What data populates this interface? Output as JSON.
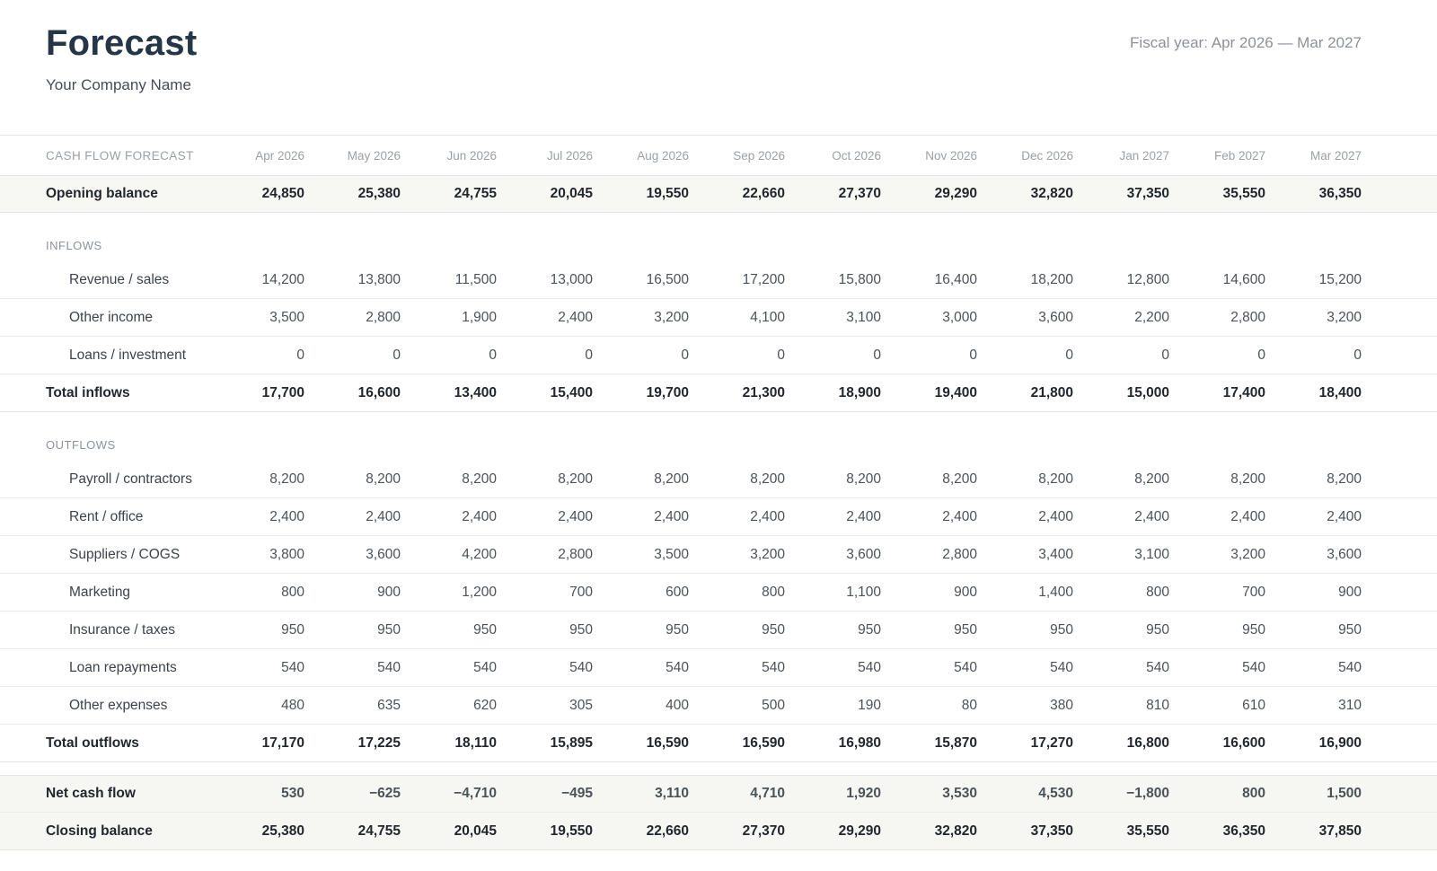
{
  "header": {
    "title": "Forecast",
    "company": "Your Company Name",
    "fiscal_year": "Fiscal year: Apr 2026 — Mar 2027"
  },
  "colors": {
    "positive": "#2d7d55",
    "negative": "#b33a2c",
    "title": "#253746",
    "row_highlight": "#f7f7f4"
  },
  "table": {
    "label_header": "CASH FLOW FORECAST",
    "months": [
      "Apr 2026",
      "May 2026",
      "Jun 2026",
      "Jul 2026",
      "Aug 2026",
      "Sep 2026",
      "Oct 2026",
      "Nov 2026",
      "Dec 2026",
      "Jan 2027",
      "Feb 2027",
      "Mar 2027"
    ],
    "rows": [
      {
        "type": "opening",
        "label": "Opening balance",
        "values": [
          "24,850",
          "25,380",
          "24,755",
          "20,045",
          "19,550",
          "22,660",
          "27,370",
          "29,290",
          "32,820",
          "37,350",
          "35,550",
          "36,350"
        ]
      },
      {
        "type": "section",
        "label": "INFLOWS",
        "values": []
      },
      {
        "type": "item",
        "label": "Revenue / sales",
        "values": [
          "14,200",
          "13,800",
          "11,500",
          "13,000",
          "16,500",
          "17,200",
          "15,800",
          "16,400",
          "18,200",
          "12,800",
          "14,600",
          "15,200"
        ]
      },
      {
        "type": "item",
        "label": "Other income",
        "values": [
          "3,500",
          "2,800",
          "1,900",
          "2,400",
          "3,200",
          "4,100",
          "3,100",
          "3,000",
          "3,600",
          "2,200",
          "2,800",
          "3,200"
        ]
      },
      {
        "type": "item",
        "label": "Loans / investment",
        "values": [
          "0",
          "0",
          "0",
          "0",
          "0",
          "0",
          "0",
          "0",
          "0",
          "0",
          "0",
          "0"
        ]
      },
      {
        "type": "total",
        "label": "Total inflows",
        "values": [
          "17,700",
          "16,600",
          "13,400",
          "15,400",
          "19,700",
          "21,300",
          "18,900",
          "19,400",
          "21,800",
          "15,000",
          "17,400",
          "18,400"
        ]
      },
      {
        "type": "section",
        "label": "OUTFLOWS",
        "values": []
      },
      {
        "type": "item",
        "label": "Payroll / contractors",
        "values": [
          "8,200",
          "8,200",
          "8,200",
          "8,200",
          "8,200",
          "8,200",
          "8,200",
          "8,200",
          "8,200",
          "8,200",
          "8,200",
          "8,200"
        ]
      },
      {
        "type": "item",
        "label": "Rent / office",
        "values": [
          "2,400",
          "2,400",
          "2,400",
          "2,400",
          "2,400",
          "2,400",
          "2,400",
          "2,400",
          "2,400",
          "2,400",
          "2,400",
          "2,400"
        ]
      },
      {
        "type": "item",
        "label": "Suppliers / COGS",
        "values": [
          "3,800",
          "3,600",
          "4,200",
          "2,800",
          "3,500",
          "3,200",
          "3,600",
          "2,800",
          "3,400",
          "3,100",
          "3,200",
          "3,600"
        ]
      },
      {
        "type": "item",
        "label": "Marketing",
        "values": [
          "800",
          "900",
          "1,200",
          "700",
          "600",
          "800",
          "1,100",
          "900",
          "1,400",
          "800",
          "700",
          "900"
        ]
      },
      {
        "type": "item",
        "label": "Insurance / taxes",
        "values": [
          "950",
          "950",
          "950",
          "950",
          "950",
          "950",
          "950",
          "950",
          "950",
          "950",
          "950",
          "950"
        ]
      },
      {
        "type": "item",
        "label": "Loan repayments",
        "values": [
          "540",
          "540",
          "540",
          "540",
          "540",
          "540",
          "540",
          "540",
          "540",
          "540",
          "540",
          "540"
        ]
      },
      {
        "type": "item",
        "label": "Other expenses",
        "values": [
          "480",
          "635",
          "620",
          "305",
          "400",
          "500",
          "190",
          "80",
          "380",
          "810",
          "610",
          "310"
        ]
      },
      {
        "type": "total",
        "label": "Total outflows",
        "values": [
          "17,170",
          "17,225",
          "18,110",
          "15,895",
          "16,590",
          "16,590",
          "16,980",
          "15,870",
          "17,270",
          "16,800",
          "16,600",
          "16,900"
        ]
      },
      {
        "type": "net",
        "label": "Net cash flow",
        "values": [
          "530",
          "−625",
          "−4,710",
          "−495",
          "3,110",
          "4,710",
          "1,920",
          "3,530",
          "4,530",
          "−1,800",
          "800",
          "1,500"
        ]
      },
      {
        "type": "closing",
        "label": "Closing balance",
        "values": [
          "25,380",
          "24,755",
          "20,045",
          "19,550",
          "22,660",
          "27,370",
          "29,290",
          "32,820",
          "37,350",
          "35,550",
          "36,350",
          "37,850"
        ]
      }
    ]
  }
}
